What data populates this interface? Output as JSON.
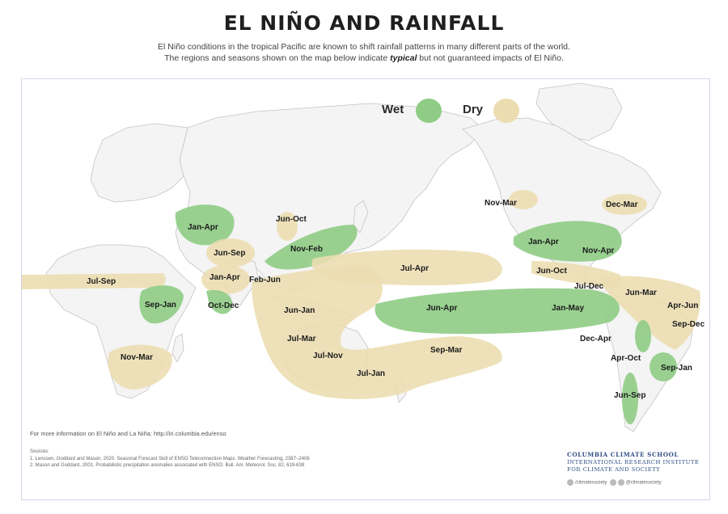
{
  "title": "EL NIÑO AND RAINFALL",
  "subtitle_line1": "El Niño conditions in the tropical Pacific are known to shift rainfall patterns in many different parts of the world.",
  "subtitle_line2_pre": "The regions and seasons shown on the map below indicate ",
  "subtitle_line2_em": "typical",
  "subtitle_line2_post": " but not guaranteed impacts of El Niño.",
  "legend": {
    "wet_label": "Wet",
    "dry_label": "Dry",
    "wet_color": "#8fcc85",
    "dry_color": "#ecddb0"
  },
  "regions": [
    {
      "label": "Nov-Mar",
      "type": "dry"
    },
    {
      "label": "Dec-Mar",
      "type": "dry"
    },
    {
      "label": "Jan-Apr",
      "type": "wet"
    },
    {
      "label": "Nov-Apr",
      "type": "wet"
    },
    {
      "label": "Jun-Oct",
      "type": "dry"
    },
    {
      "label": "Jul-Dec",
      "type": "dry"
    },
    {
      "label": "Jun-Mar",
      "type": "dry"
    },
    {
      "label": "Apr-Jun",
      "type": "dry"
    },
    {
      "label": "Sep-Dec",
      "type": "dry"
    },
    {
      "label": "Dec-Apr",
      "type": "wet"
    },
    {
      "label": "Apr-Oct",
      "type": "wet"
    },
    {
      "label": "Sep-Jan",
      "type": "wet"
    },
    {
      "label": "Jun-Sep",
      "type": "wet"
    },
    {
      "label": "Jan-Apr",
      "type": "wet"
    },
    {
      "label": "Jun-Oct",
      "type": "dry"
    },
    {
      "label": "Nov-Feb",
      "type": "wet"
    },
    {
      "label": "Jun-Sep",
      "type": "dry"
    },
    {
      "label": "Jan-Apr",
      "type": "dry"
    },
    {
      "label": "Feb-Jun",
      "type": "dry"
    },
    {
      "label": "Oct-Dec",
      "type": "wet"
    },
    {
      "label": "Jul-Sep",
      "type": "dry"
    },
    {
      "label": "Sep-Jan",
      "type": "wet"
    },
    {
      "label": "Nov-Mar",
      "type": "dry"
    },
    {
      "label": "Jul-Apr",
      "type": "dry"
    },
    {
      "label": "Jun-Apr",
      "type": "wet"
    },
    {
      "label": "Jan-May",
      "type": "wet"
    },
    {
      "label": "Jun-Jan",
      "type": "dry"
    },
    {
      "label": "Jul-Mar",
      "type": "dry"
    },
    {
      "label": "Jul-Nov",
      "type": "dry"
    },
    {
      "label": "Jul-Jan",
      "type": "dry"
    },
    {
      "label": "Sep-Mar",
      "type": "dry"
    }
  ],
  "more_info": "For more information on El Niño and La Niña: http://iri.columbia.edu/enso",
  "sources_heading": "Sources:",
  "source_1": "1. Lenssen, Goddard and Mason, 2020. Seasonal Forecast Skill of ENSO Teleconnection Maps. Weather Forecasting, 2387–2406",
  "source_2": "2. Mason and Goddard, 2001. Probabilistic precipitation anomalies associated with ENSO. Bull. Am. Meteorol. Soc. 82, 619-638",
  "brand_line1": "COLUMBIA CLIMATE SCHOOL",
  "brand_line2": "INTERNATIONAL RESEARCH INSTITUTE",
  "brand_line3": "FOR CLIMATE AND SOCIETY",
  "social_1": "/climatesociety",
  "social_2": "@climatesociety"
}
